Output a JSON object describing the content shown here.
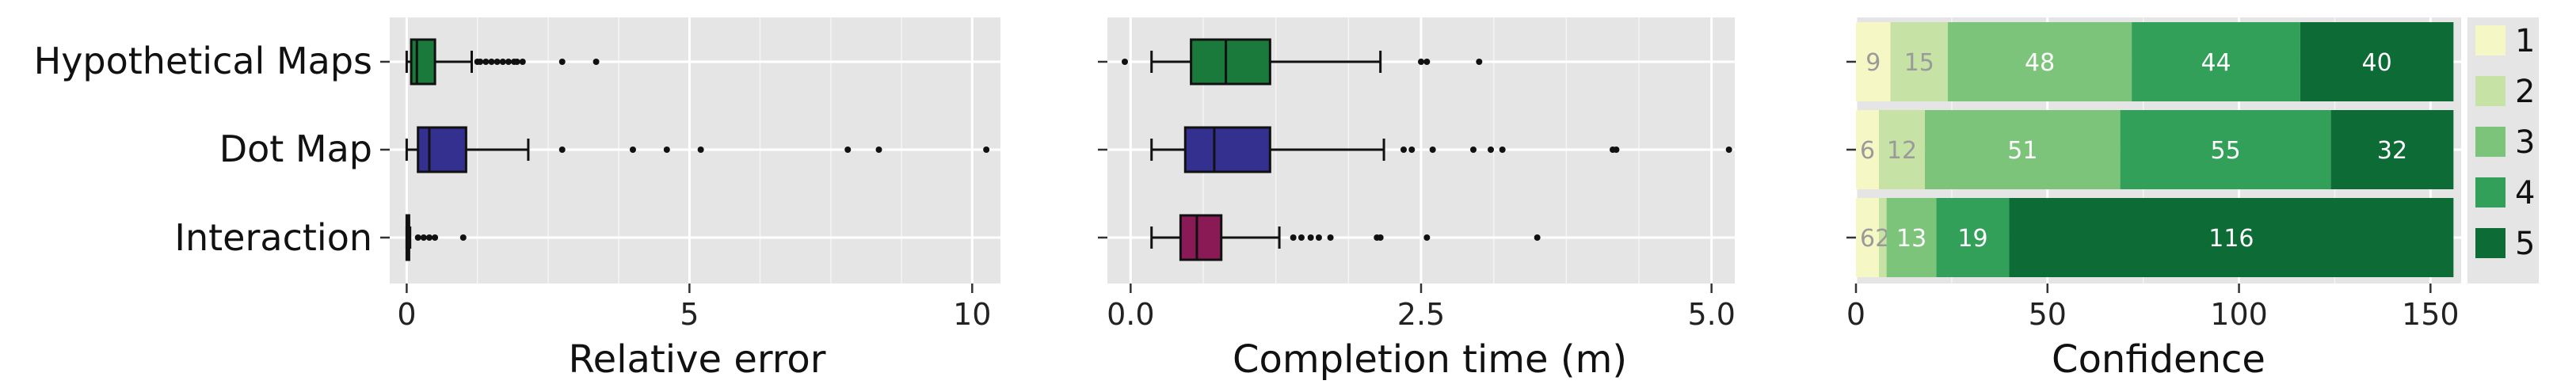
{
  "chart_data": [
    {
      "type": "box",
      "xlabel": "Relative error",
      "categories": [
        "Hypothetical Maps",
        "Dot Map",
        "Interaction"
      ],
      "xlim": [
        -0.3,
        10.5
      ],
      "xticks": [
        "0",
        "5",
        "10"
      ],
      "xtick_values": [
        0,
        5,
        10
      ],
      "boxes": [
        {
          "category": "Hypothetical Maps",
          "color": "#1a7a3c",
          "whisker_low": 0.0,
          "q1": 0.08,
          "median": 0.18,
          "q3": 0.5,
          "whisker_high": 1.15,
          "outliers": [
            1.25,
            1.3,
            1.4,
            1.5,
            1.6,
            1.7,
            1.8,
            1.9,
            1.95,
            2.05,
            2.75,
            3.35
          ]
        },
        {
          "category": "Dot Map",
          "color": "#33308f",
          "whisker_low": 0.0,
          "q1": 0.2,
          "median": 0.4,
          "q3": 1.05,
          "whisker_high": 2.15,
          "outliers": [
            2.75,
            4.0,
            4.6,
            5.2,
            7.8,
            8.35,
            10.25
          ]
        },
        {
          "category": "Interaction",
          "color": "#8a1a55",
          "whisker_low": 0.0,
          "q1": 0.0,
          "median": 0.01,
          "q3": 0.03,
          "whisker_high": 0.06,
          "outliers": [
            0.2,
            0.3,
            0.4,
            0.5,
            1.0
          ]
        }
      ]
    },
    {
      "type": "box",
      "xlabel": "Completion time (m)",
      "categories": [
        "Hypothetical Maps",
        "Dot Map",
        "Interaction"
      ],
      "xlim": [
        -0.2,
        5.2
      ],
      "xticks": [
        "0.0",
        "2.5",
        "5.0"
      ],
      "xtick_values": [
        0,
        2.5,
        5
      ],
      "boxes": [
        {
          "category": "Hypothetical Maps",
          "color": "#1a7a3c",
          "whisker_low": 0.18,
          "q1": 0.52,
          "median": 0.82,
          "q3": 1.2,
          "whisker_high": 2.15,
          "outliers": [
            -0.05,
            2.5,
            2.55,
            3.0
          ]
        },
        {
          "category": "Dot Map",
          "color": "#33308f",
          "whisker_low": 0.18,
          "q1": 0.47,
          "median": 0.72,
          "q3": 1.2,
          "whisker_high": 2.18,
          "outliers": [
            2.35,
            2.42,
            2.6,
            2.95,
            3.1,
            3.2,
            4.15,
            4.18,
            5.15
          ]
        },
        {
          "category": "Interaction",
          "color": "#8a1a55",
          "whisker_low": 0.18,
          "q1": 0.43,
          "median": 0.57,
          "q3": 0.78,
          "whisker_high": 1.28,
          "outliers": [
            1.4,
            1.47,
            1.55,
            1.62,
            1.72,
            2.12,
            2.15,
            2.55,
            3.5
          ]
        }
      ]
    },
    {
      "type": "stacked-bar",
      "xlabel": "Confidence",
      "categories": [
        "Hypothetical Maps",
        "Dot Map",
        "Interaction"
      ],
      "xlim": [
        0,
        158
      ],
      "xticks": [
        "0",
        "50",
        "100",
        "150"
      ],
      "xtick_values": [
        0,
        50,
        100,
        150
      ],
      "legend": {
        "position": "right",
        "entries": [
          "1",
          "2",
          "3",
          "4",
          "5"
        ]
      },
      "colors": [
        "#f5f7c4",
        "#c6e2a4",
        "#7cc47a",
        "#33a05a",
        "#0d6b36"
      ],
      "series": [
        {
          "name": "1",
          "values": [
            9,
            6,
            6
          ]
        },
        {
          "name": "2",
          "values": [
            15,
            12,
            2
          ]
        },
        {
          "name": "3",
          "values": [
            48,
            51,
            13
          ]
        },
        {
          "name": "4",
          "values": [
            44,
            55,
            19
          ]
        },
        {
          "name": "5",
          "values": [
            40,
            32,
            116
          ]
        }
      ]
    }
  ]
}
